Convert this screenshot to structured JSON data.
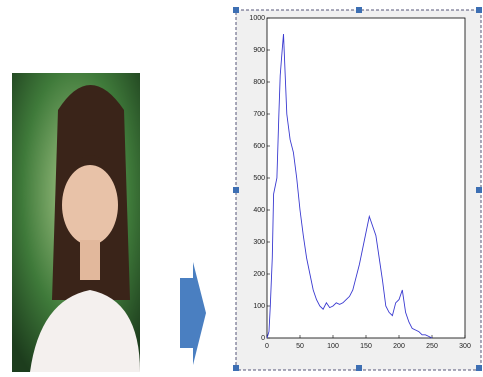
{
  "chart_data": {
    "type": "line",
    "x": [
      0,
      3,
      5,
      8,
      10,
      13,
      15,
      18,
      20,
      23,
      25,
      28,
      30,
      35,
      40,
      45,
      50,
      55,
      60,
      65,
      70,
      75,
      80,
      85,
      90,
      95,
      100,
      105,
      110,
      115,
      120,
      125,
      130,
      135,
      140,
      145,
      150,
      155,
      160,
      165,
      170,
      175,
      180,
      185,
      190,
      195,
      200,
      205,
      210,
      215,
      220,
      225,
      230,
      235,
      240,
      245,
      250
    ],
    "series": [
      {
        "color": "#3a3ad0",
        "values": [
          0,
          20,
          100,
          250,
          450,
          480,
          500,
          700,
          820,
          900,
          950,
          800,
          700,
          620,
          580,
          500,
          400,
          320,
          250,
          200,
          150,
          120,
          100,
          90,
          110,
          95,
          100,
          110,
          105,
          110,
          120,
          130,
          150,
          190,
          230,
          280,
          330,
          380,
          350,
          320,
          250,
          180,
          100,
          80,
          70,
          110,
          120,
          150,
          80,
          50,
          30,
          25,
          20,
          10,
          10,
          5,
          0
        ]
      }
    ],
    "xlim": [
      0,
      300
    ],
    "xticks": [
      0,
      50,
      100,
      150,
      200,
      250,
      300
    ],
    "ylim": [
      0,
      1000
    ],
    "yticks": [
      0,
      100,
      200,
      300,
      400,
      500,
      600,
      700,
      800,
      900,
      1000
    ]
  }
}
